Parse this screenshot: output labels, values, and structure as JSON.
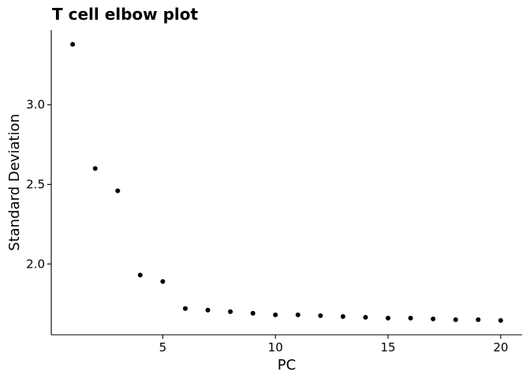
{
  "chart_data": {
    "type": "scatter",
    "title": "T cell elbow plot",
    "xlabel": "PC",
    "ylabel": "Standard Deviation",
    "x": [
      1,
      2,
      3,
      4,
      5,
      6,
      7,
      8,
      9,
      10,
      11,
      12,
      13,
      14,
      15,
      16,
      17,
      18,
      19,
      20
    ],
    "y": [
      3.38,
      2.6,
      2.46,
      1.93,
      1.89,
      1.72,
      1.71,
      1.7,
      1.69,
      1.68,
      1.68,
      1.675,
      1.67,
      1.665,
      1.66,
      1.66,
      1.655,
      1.65,
      1.65,
      1.645
    ],
    "xticks": [
      5,
      10,
      15,
      20
    ],
    "xtick_labels": [
      "5",
      "10",
      "15",
      "20"
    ],
    "yticks": [
      2.0,
      2.5,
      3.0
    ],
    "ytick_labels": [
      "2.0",
      "2.5",
      "3.0"
    ],
    "xlim": [
      0.05,
      20.95
    ],
    "ylim": [
      1.555,
      3.47
    ],
    "grid": false,
    "legend": "none",
    "point_color": "#000000"
  }
}
